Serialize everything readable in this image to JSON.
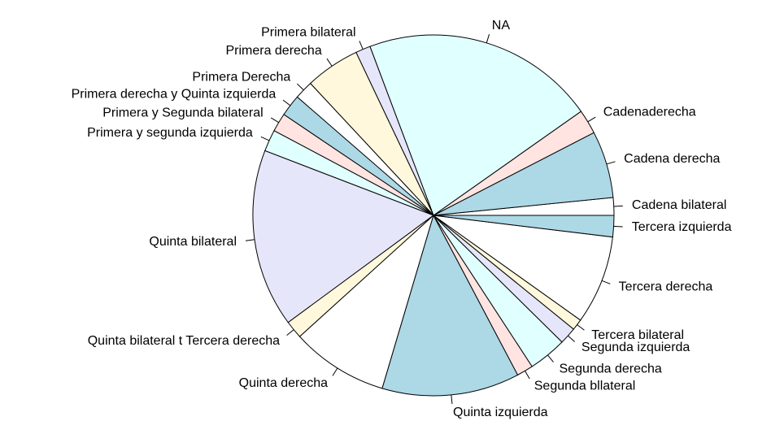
{
  "chart_data": {
    "type": "pie",
    "start_angle": 0,
    "direction": "counterclockwise",
    "categories": [
      "Cadena bilateral",
      "Cadena derecha",
      "Cadenaderecha",
      "NA",
      "Primera bilateral",
      "Primera derecha",
      "Primera Derecha",
      "Primera derecha y Quinta izquierda",
      "Primera y Segunda bilateral",
      "Primera y segunda izquierda",
      "Quinta bilateral",
      "Quinta bilateral t Tercera derecha",
      "Quinta derecha",
      "Quinta izquierda",
      "Segunda bllateral",
      "Segunda derecha",
      "Segunda izquierda",
      "Tercera bilateral",
      "Tercera derecha",
      "Tercera izquierda"
    ],
    "values": [
      5.7,
      21.6,
      7.9,
      75.4,
      4.8,
      17.6,
      6,
      7,
      6,
      7,
      57.4,
      5.8,
      31.3,
      44.3,
      5.3,
      12.3,
      5.5,
      3.6,
      28.6,
      6.9
    ],
    "colors": [
      "#ffffff",
      "#add8e6",
      "#ffe4e1",
      "#e0ffff",
      "#e6e6fa",
      "#fff8dc",
      "#ffffff",
      "#add8e6",
      "#ffe4e1",
      "#e0ffff",
      "#e6e6fa",
      "#fff8dc",
      "#ffffff",
      "#add8e6",
      "#ffe4e1",
      "#e0ffff",
      "#e6e6fa",
      "#fff8dc",
      "#ffffff",
      "#add8e6"
    ]
  }
}
